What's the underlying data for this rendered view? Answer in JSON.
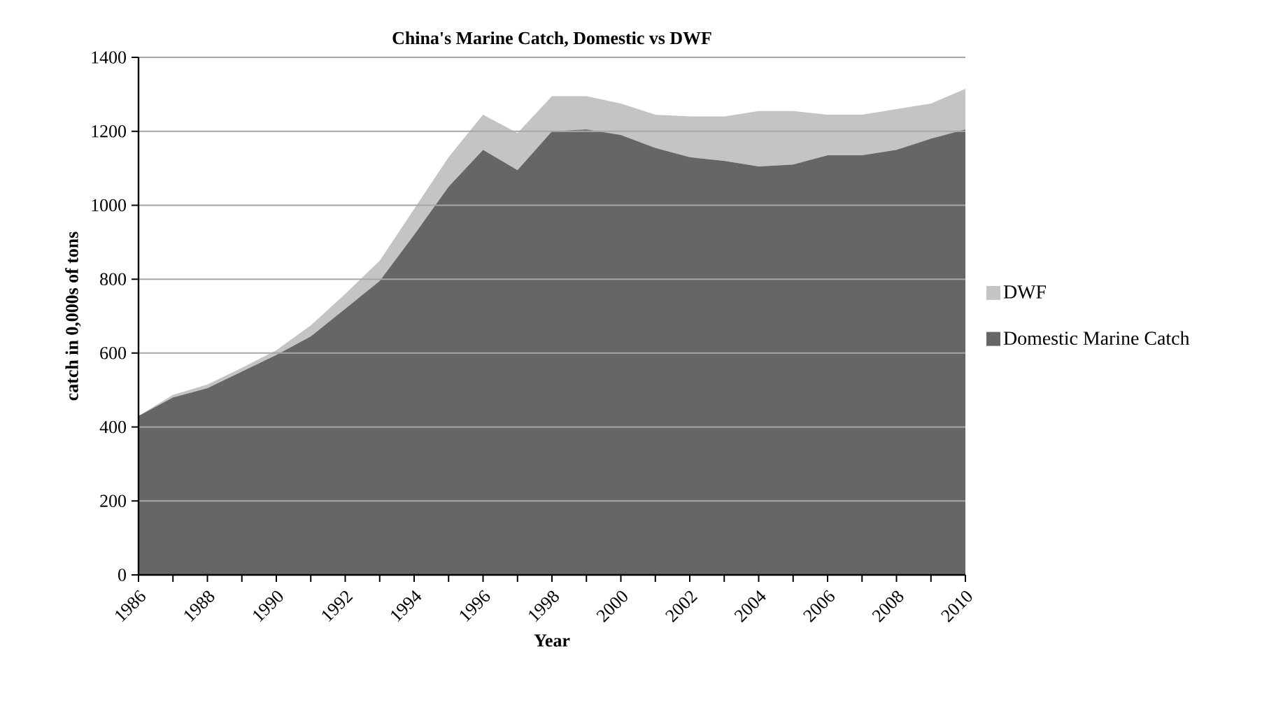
{
  "chart_data": {
    "type": "area",
    "title": "China's Marine Catch, Domestic vs DWF",
    "xlabel": "Year",
    "ylabel": "catch in 0,000s of tons",
    "x": [
      1986,
      1987,
      1988,
      1989,
      1990,
      1991,
      1992,
      1993,
      1994,
      1995,
      1996,
      1997,
      1998,
      1999,
      2000,
      2001,
      2002,
      2003,
      2004,
      2005,
      2006,
      2007,
      2008,
      2009,
      2010
    ],
    "stacked": true,
    "series": [
      {
        "name": "Domestic Marine Catch",
        "color": "#666666",
        "values": [
          430,
          480,
          505,
          550,
          595,
          645,
          720,
          795,
          920,
          1050,
          1150,
          1095,
          1200,
          1205,
          1190,
          1155,
          1130,
          1120,
          1105,
          1110,
          1135,
          1135,
          1150,
          1180,
          1205
        ]
      },
      {
        "name": "DWF",
        "color": "#c4c4c4",
        "values": [
          0,
          7,
          10,
          10,
          13,
          30,
          40,
          55,
          70,
          80,
          95,
          100,
          95,
          90,
          85,
          90,
          110,
          120,
          150,
          145,
          110,
          110,
          110,
          95,
          110
        ]
      }
    ],
    "xlim": [
      1986,
      2010
    ],
    "xticks": [
      1986,
      {
        "value": 1987,
        "label": null
      },
      1988,
      {
        "value": 1989,
        "label": null
      },
      1990,
      {
        "value": 1991,
        "label": null
      },
      1992,
      {
        "value": 1993,
        "label": null
      },
      1994,
      {
        "value": 1995,
        "label": null
      },
      1996,
      {
        "value": 1997,
        "label": null
      },
      1998,
      {
        "value": 1999,
        "label": null
      },
      2000,
      {
        "value": 2001,
        "label": null
      },
      2002,
      {
        "value": 2003,
        "label": null
      },
      2004,
      {
        "value": 2005,
        "label": null
      },
      2006,
      {
        "value": 2007,
        "label": null
      },
      2008,
      {
        "value": 2009,
        "label": null
      },
      2010
    ],
    "ylim": [
      0,
      1400
    ],
    "yticks": [
      0,
      200,
      400,
      600,
      800,
      1000,
      1200,
      1400
    ],
    "grid": "y",
    "legend": "right"
  }
}
